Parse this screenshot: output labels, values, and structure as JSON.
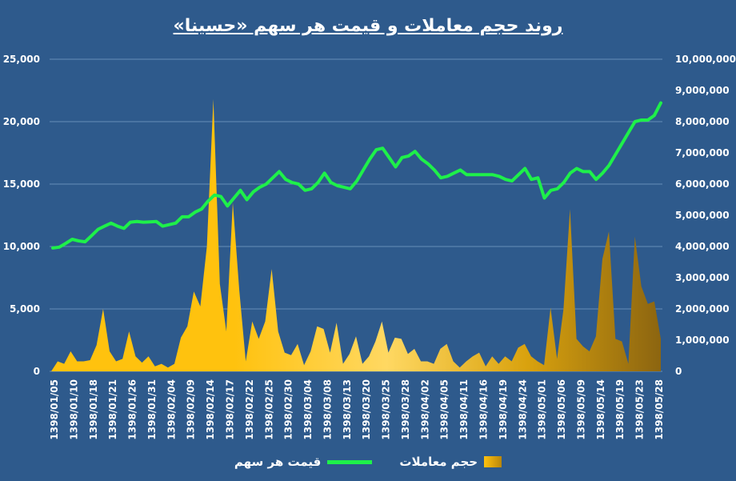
{
  "chart_data": {
    "type": "area",
    "title": "روند حجم معاملات و قیمت هر سهم «حسینا»",
    "x_labels": [
      "1398/01/05",
      "1398/01/10",
      "1398/01/18",
      "1398/01/21",
      "1398/01/26",
      "1398/01/31",
      "1398/02/04",
      "1398/02/09",
      "1398/02/14",
      "1398/02/17",
      "1398/02/22",
      "1398/02/25",
      "1398/02/30",
      "1398/03/04",
      "1398/03/08",
      "1398/03/13",
      "1398/03/20",
      "1398/03/25",
      "1398/03/28",
      "1398/04/02",
      "1398/04/05",
      "1398/04/11",
      "1398/04/16",
      "1398/04/19",
      "1398/04/24",
      "1398/05/01",
      "1398/05/06",
      "1398/05/09",
      "1398/05/14",
      "1398/05/19",
      "1398/05/23",
      "1398/05/28"
    ],
    "left_axis": {
      "min": 0,
      "max": 25000,
      "ticks": [
        "0",
        "5,000",
        "10,000",
        "15,000",
        "20,000",
        "25,000"
      ]
    },
    "right_axis": {
      "min": 0,
      "max": 10000000,
      "ticks": [
        "0",
        "1,000,000",
        "2,000,000",
        "3,000,000",
        "4,000,000",
        "5,000,000",
        "6,000,000",
        "7,000,000",
        "8,000,000",
        "9,000,000",
        "10,000,000"
      ]
    },
    "legend_position": "bottom",
    "series": [
      {
        "name": "حجم معاملات",
        "axis": "left",
        "color": "#ffc20e",
        "values": [
          0,
          800,
          600,
          1600,
          800,
          800,
          900,
          2100,
          5000,
          1600,
          800,
          1000,
          3200,
          1200,
          700,
          1200,
          400,
          600,
          300,
          600,
          2700,
          3600,
          6400,
          5200,
          10000,
          21800,
          7000,
          3200,
          13500,
          6500,
          800,
          4000,
          2600,
          4000,
          8200,
          3200,
          1500,
          1300,
          2200,
          500,
          1600,
          3600,
          3400,
          1500,
          3900,
          600,
          1400,
          2800,
          600,
          1200,
          2400,
          4000,
          1500,
          2700,
          2600,
          1400,
          1800,
          800,
          800,
          600,
          1800,
          2200,
          800,
          300,
          800,
          1200,
          1500,
          400,
          1200,
          600,
          1200,
          800,
          1900,
          2200,
          1200,
          800,
          500,
          5100,
          1000,
          5000,
          13000,
          2600,
          2000,
          1600,
          2800,
          9000,
          11200,
          2600,
          2400,
          600,
          10800,
          6800,
          5400,
          5600,
          2600
        ]
      },
      {
        "name": "قیمت هر سهم",
        "axis": "right",
        "color": "#1ef04a",
        "values": [
          3950000,
          3980000,
          4100000,
          4230000,
          4180000,
          4150000,
          4350000,
          4550000,
          4650000,
          4750000,
          4650000,
          4580000,
          4780000,
          4800000,
          4780000,
          4790000,
          4800000,
          4650000,
          4700000,
          4750000,
          4950000,
          4950000,
          5100000,
          5200000,
          5450000,
          5650000,
          5600000,
          5300000,
          5550000,
          5800000,
          5500000,
          5750000,
          5900000,
          6000000,
          6200000,
          6400000,
          6150000,
          6050000,
          6000000,
          5800000,
          5850000,
          6050000,
          6350000,
          6050000,
          5950000,
          5900000,
          5850000,
          6100000,
          6450000,
          6800000,
          7100000,
          7150000,
          6850000,
          6550000,
          6850000,
          6900000,
          7050000,
          6800000,
          6650000,
          6450000,
          6200000,
          6250000,
          6350000,
          6450000,
          6300000,
          6300000,
          6300000,
          6300000,
          6300000,
          6250000,
          6150000,
          6100000,
          6300000,
          6500000,
          6150000,
          6200000,
          5550000,
          5800000,
          5850000,
          6050000,
          6350000,
          6500000,
          6400000,
          6400000,
          6150000,
          6350000,
          6600000,
          6950000,
          7300000,
          7650000,
          8000000,
          8050000,
          8050000,
          8200000,
          8600000
        ]
      }
    ]
  }
}
